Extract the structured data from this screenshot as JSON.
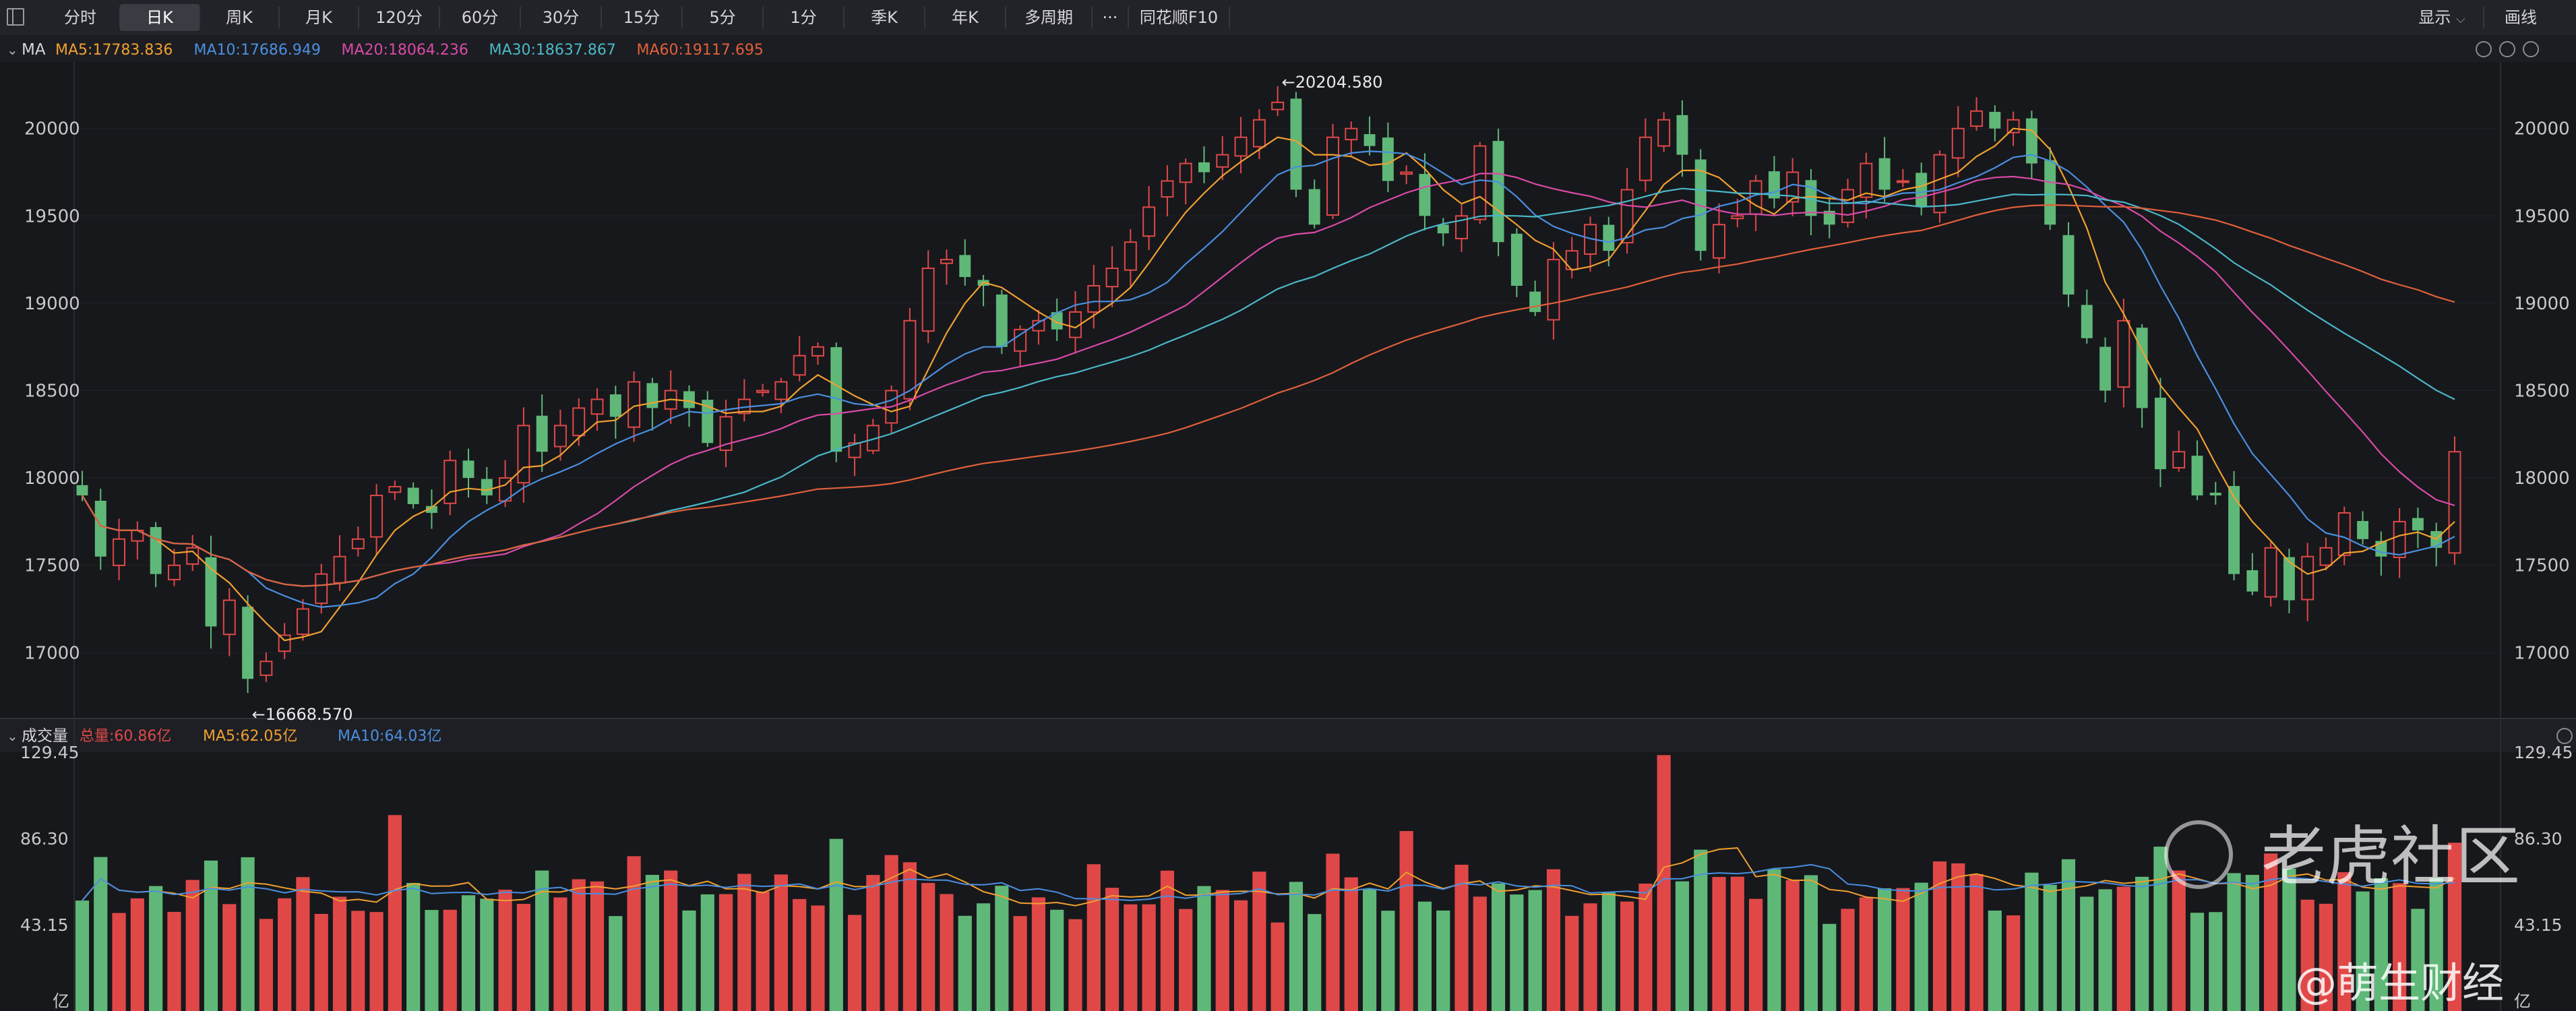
{
  "toolbar": {
    "tabs": [
      {
        "label": "分时",
        "active": false
      },
      {
        "label": "日K",
        "active": true
      },
      {
        "label": "周K",
        "active": false
      },
      {
        "label": "月K",
        "active": false
      },
      {
        "label": "120分",
        "active": false
      },
      {
        "label": "60分",
        "active": false
      },
      {
        "label": "30分",
        "active": false
      },
      {
        "label": "15分",
        "active": false
      },
      {
        "label": "5分",
        "active": false
      },
      {
        "label": "1分",
        "active": false
      },
      {
        "label": "季K",
        "active": false
      },
      {
        "label": "年K",
        "active": false
      },
      {
        "label": "多周期",
        "active": false
      },
      {
        "label": "···",
        "active": false
      },
      {
        "label": "同花顺F10",
        "active": false
      }
    ],
    "display_label": "显示",
    "draw_label": "画线"
  },
  "price_panel": {
    "indicator": "MA",
    "legend": [
      {
        "text": "MA5:17783.836",
        "color": "#f0a030"
      },
      {
        "text": "MA10:17686.949",
        "color": "#4a8fe0"
      },
      {
        "text": "MA20:18064.236",
        "color": "#d94aa8"
      },
      {
        "text": "MA30:18637.867",
        "color": "#4ab8c8"
      },
      {
        "text": "MA60:19117.695",
        "color": "#e0603a"
      }
    ],
    "y_ticks": [
      20000,
      19500,
      19000,
      18500,
      18000,
      17500,
      17000
    ],
    "high_label": "←20204.580",
    "low_label": "←16668.570"
  },
  "volume_panel": {
    "title": "成交量",
    "legend": [
      {
        "text": "总量:60.86亿",
        "color": "#e04848"
      },
      {
        "text": "MA5:62.05亿",
        "color": "#f0a030"
      },
      {
        "text": "MA10:64.03亿",
        "color": "#4a8fe0"
      }
    ],
    "y_ticks": [
      "129.45",
      "86.30",
      "43.15"
    ],
    "unit": "亿"
  },
  "watermark": {
    "brand": "老虎社区",
    "author": "@萌生财经"
  },
  "colors": {
    "up": "#e04848",
    "down": "#5fb878",
    "ma5": "#f0a030",
    "ma10": "#4a8fe0",
    "ma20": "#d94aa8",
    "ma30": "#4ab8c8",
    "ma60": "#e0603a"
  },
  "chart_data": {
    "type": "candlestick",
    "price_range": [
      16600,
      20350
    ],
    "volume_range": [
      0,
      129.45
    ],
    "closes": [
      17900,
      17550,
      17650,
      17700,
      17450,
      17500,
      17600,
      17150,
      17300,
      16850,
      16950,
      17100,
      17250,
      17450,
      17550,
      17650,
      17900,
      17950,
      17850,
      17800,
      18100,
      18000,
      17900,
      18000,
      18300,
      18150,
      18300,
      18400,
      18450,
      18350,
      18550,
      18400,
      18500,
      18400,
      18200,
      18350,
      18450,
      18500,
      18550,
      18700,
      18750,
      18150,
      18200,
      18300,
      18500,
      18900,
      19200,
      19250,
      19150,
      19100,
      18750,
      18850,
      18900,
      18850,
      18950,
      19100,
      19200,
      19350,
      19550,
      19700,
      19800,
      19750,
      19850,
      19950,
      20050,
      20150,
      19650,
      19450,
      19950,
      20000,
      19900,
      19700,
      19750,
      19500,
      19400,
      19500,
      19900,
      19350,
      19100,
      18950,
      19250,
      19300,
      19450,
      19300,
      19650,
      19950,
      20050,
      19850,
      19300,
      19450,
      19500,
      19700,
      19600,
      19750,
      19500,
      19450,
      19650,
      19800,
      19650,
      19700,
      19550,
      19850,
      20000,
      20100,
      20000,
      20050,
      19800,
      19450,
      19050,
      18800,
      18500,
      18900,
      18400,
      18050,
      18150,
      17900,
      17900,
      17450,
      17350,
      17600,
      17300,
      17550,
      17600,
      17800,
      17650,
      17550,
      17750,
      17700,
      17600,
      18150
    ],
    "moving_averages": {
      "MA5": "overlay from closes",
      "MA10": "overlay from closes",
      "MA20": "overlay from closes",
      "MA30": "overlay from closes",
      "MA60": "overlay from closes"
    }
  }
}
